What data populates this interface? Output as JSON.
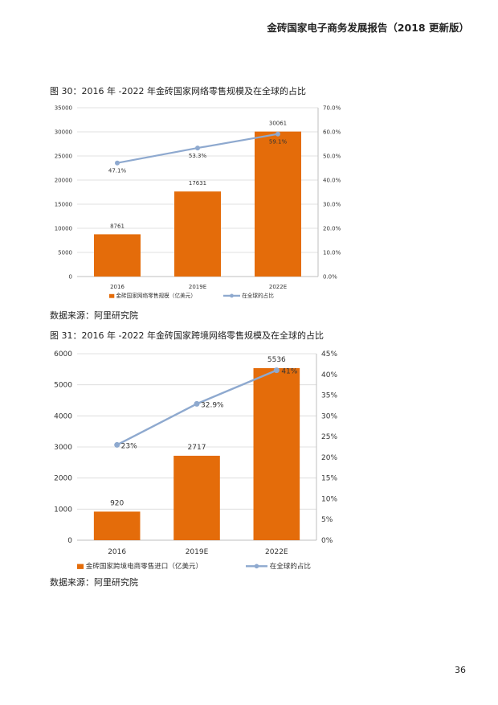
{
  "header": {
    "title": "金砖国家电子商务发展报告（2018 更新版）"
  },
  "figure1": {
    "caption": "图 30：2016 年 -2022 年金砖国家网络零售规模及在全球的占比",
    "source": "数据来源：阿里研究院"
  },
  "figure2": {
    "caption": "图 31：2016 年 -2022 年金砖国家跨境网络零售规模及在全球的占比",
    "source": "数据来源：阿里研究院"
  },
  "page_number": "36",
  "colors": {
    "bar": "#E46C0A",
    "line": "#8EA9CF",
    "grid": "#D9D9D9"
  },
  "chart_data": [
    {
      "type": "bar",
      "title": "",
      "categories": [
        "2016",
        "2019E",
        "2022E"
      ],
      "series": [
        {
          "name": "金砖国家网络零售规模（亿美元）",
          "type": "bar",
          "axis": "left",
          "values": [
            8761,
            17631,
            30061
          ],
          "labels": [
            "8761",
            "17631",
            "30061"
          ]
        },
        {
          "name": "在全球的占比",
          "type": "line",
          "axis": "right",
          "values": [
            47.1,
            53.3,
            59.1
          ],
          "labels": [
            "47.1%",
            "53.3%",
            "59.1%"
          ]
        }
      ],
      "ylim": [
        0,
        35000
      ],
      "y2lim": [
        0,
        70
      ],
      "yticks": [
        "0",
        "5000",
        "10000",
        "15000",
        "20000",
        "25000",
        "30000",
        "35000"
      ],
      "y2ticks": [
        "0.0%",
        "10.0%",
        "20.0%",
        "30.0%",
        "40.0%",
        "50.0%",
        "60.0%",
        "70.0%"
      ],
      "grid": true,
      "legend": "bottom"
    },
    {
      "type": "bar",
      "title": "",
      "categories": [
        "2016",
        "2019E",
        "2022E"
      ],
      "series": [
        {
          "name": "金砖国家跨境电商零售进口（亿美元）",
          "type": "bar",
          "axis": "left",
          "values": [
            920,
            2717,
            5536
          ],
          "labels": [
            "920",
            "2717",
            "5536"
          ]
        },
        {
          "name": "在全球的占比",
          "type": "line",
          "axis": "right",
          "values": [
            23,
            32.9,
            41
          ],
          "labels": [
            "23%",
            "32.9%",
            "41%"
          ]
        }
      ],
      "ylim": [
        0,
        6000
      ],
      "y2lim": [
        0,
        45
      ],
      "yticks": [
        "0",
        "1000",
        "2000",
        "3000",
        "4000",
        "5000",
        "6000"
      ],
      "y2ticks": [
        "0%",
        "5%",
        "10%",
        "15%",
        "20%",
        "25%",
        "30%",
        "35%",
        "40%",
        "45%"
      ],
      "grid": true,
      "legend": "bottom"
    }
  ]
}
